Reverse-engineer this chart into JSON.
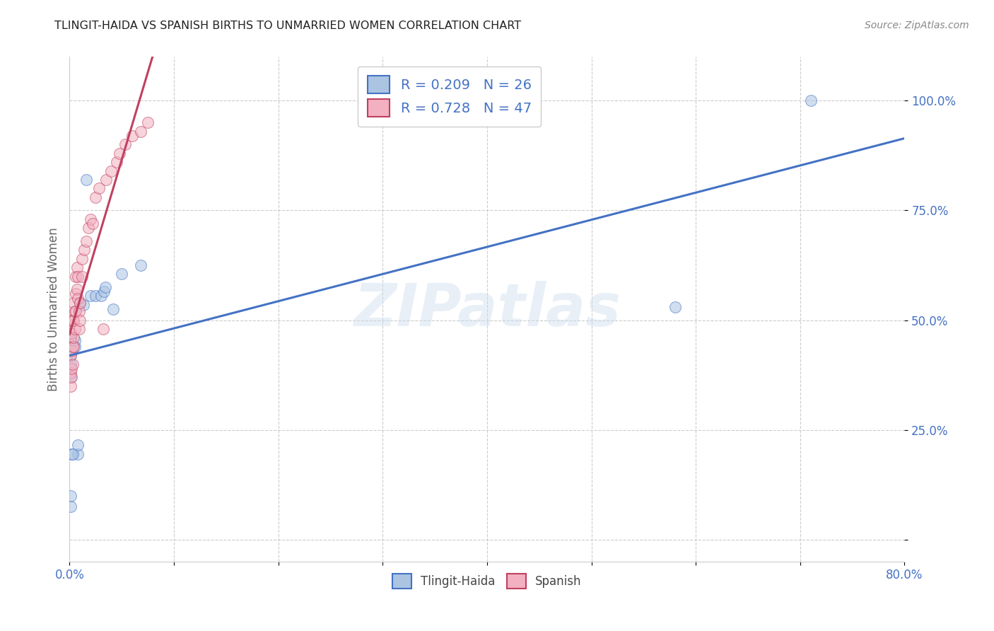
{
  "title": "TLINGIT-HAIDA VS SPANISH BIRTHS TO UNMARRIED WOMEN CORRELATION CHART",
  "source": "Source: ZipAtlas.com",
  "ylabel": "Births to Unmarried Women",
  "xlim": [
    0.0,
    0.8
  ],
  "ylim": [
    -0.05,
    1.1
  ],
  "xtick_positions": [
    0.0,
    0.1,
    0.2,
    0.3,
    0.4,
    0.5,
    0.6,
    0.7,
    0.8
  ],
  "xticklabels": [
    "0.0%",
    "",
    "",
    "",
    "",
    "",
    "",
    "",
    "80.0%"
  ],
  "ytick_positions": [
    0.0,
    0.25,
    0.5,
    0.75,
    1.0
  ],
  "yticklabels": [
    "",
    "25.0%",
    "50.0%",
    "75.0%",
    "100.0%"
  ],
  "legend_r1": "R = 0.209   N = 26",
  "legend_r2": "R = 0.728   N = 47",
  "series1_name": "Tlingit-Haida",
  "series2_name": "Spanish",
  "color1": "#aac4e2",
  "color2": "#f2b0c0",
  "line_color1": "#4472c4",
  "line_color2": "#c04060",
  "legend_text_color": "#4472c4",
  "watermark": "ZIPatlas",
  "background_color": "#ffffff",
  "grid_color": "#cccccc",
  "tlingit_x": [
    0.001,
    0.001,
    0.001,
    0.001,
    0.001,
    0.001,
    0.005,
    0.005,
    0.008,
    0.008,
    0.01,
    0.013,
    0.016,
    0.02,
    0.025,
    0.03,
    0.033,
    0.034,
    0.042,
    0.05,
    0.068,
    0.58,
    0.71,
    0.002,
    0.003,
    0.001
  ],
  "tlingit_y": [
    0.37,
    0.4,
    0.42,
    0.44,
    0.455,
    0.1,
    0.44,
    0.455,
    0.195,
    0.215,
    0.54,
    0.535,
    0.82,
    0.555,
    0.555,
    0.555,
    0.565,
    0.575,
    0.525,
    0.605,
    0.625,
    0.53,
    1.0,
    0.195,
    0.195,
    0.075
  ],
  "spanish_x": [
    0.001,
    0.001,
    0.001,
    0.001,
    0.001,
    0.002,
    0.002,
    0.002,
    0.002,
    0.003,
    0.003,
    0.003,
    0.004,
    0.004,
    0.004,
    0.004,
    0.005,
    0.005,
    0.006,
    0.006,
    0.006,
    0.007,
    0.007,
    0.008,
    0.008,
    0.009,
    0.009,
    0.01,
    0.01,
    0.012,
    0.012,
    0.014,
    0.016,
    0.018,
    0.02,
    0.022,
    0.025,
    0.028,
    0.032,
    0.035,
    0.04,
    0.045,
    0.048,
    0.053,
    0.06,
    0.068,
    0.075
  ],
  "spanish_y": [
    0.35,
    0.38,
    0.42,
    0.46,
    0.5,
    0.37,
    0.39,
    0.43,
    0.47,
    0.4,
    0.44,
    0.5,
    0.44,
    0.46,
    0.5,
    0.54,
    0.48,
    0.52,
    0.52,
    0.56,
    0.6,
    0.57,
    0.62,
    0.55,
    0.6,
    0.48,
    0.52,
    0.5,
    0.54,
    0.6,
    0.64,
    0.66,
    0.68,
    0.71,
    0.73,
    0.72,
    0.78,
    0.8,
    0.48,
    0.82,
    0.84,
    0.86,
    0.88,
    0.9,
    0.92,
    0.93,
    0.95
  ]
}
